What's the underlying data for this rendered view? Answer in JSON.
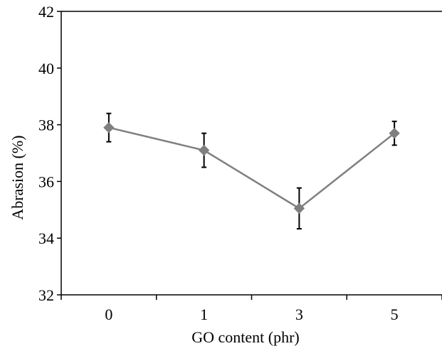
{
  "chart_data": {
    "type": "line",
    "categories": [
      "0",
      "1",
      "3",
      "5"
    ],
    "series": [
      {
        "values": [
          37.9,
          37.1,
          35.05,
          37.7
        ],
        "error": [
          0.5,
          0.6,
          0.72,
          0.42
        ],
        "color": "#7f7f7f",
        "marker": "diamond"
      }
    ],
    "xlabel": "GO content (phr)",
    "ylabel": "Abrasion (%)",
    "ylim": [
      32,
      42
    ],
    "yticks": [
      "32",
      "34",
      "36",
      "38",
      "40",
      "42"
    ],
    "grid": false,
    "error_bar_color": "#000000"
  }
}
